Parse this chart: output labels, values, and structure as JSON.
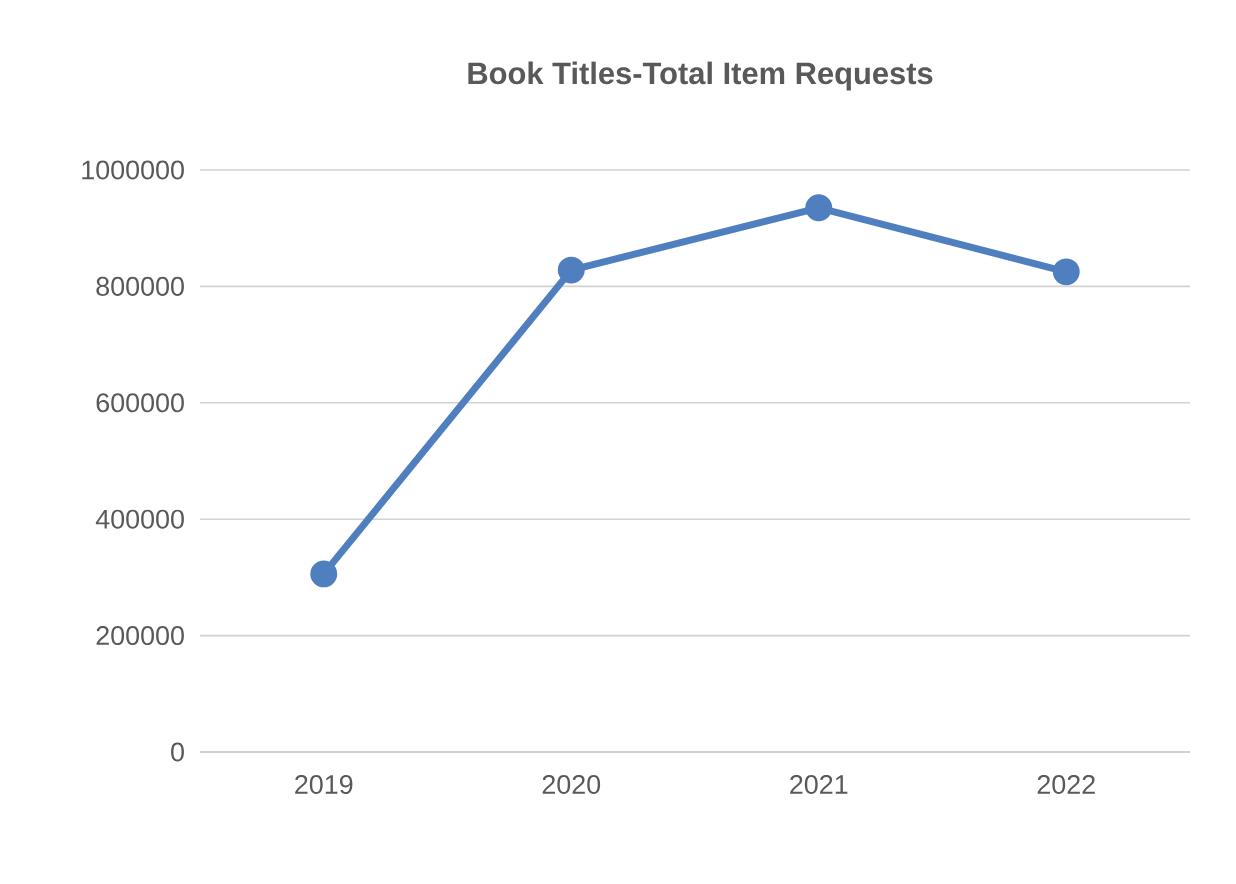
{
  "chart_data": {
    "type": "line",
    "title": "Book Titles-Total Item Requests",
    "categories": [
      "2019",
      "2020",
      "2021",
      "2022"
    ],
    "series": [
      {
        "color": "#4f7fbf",
        "values": [
          306000,
          828000,
          935000,
          825000
        ]
      }
    ],
    "ylim": [
      0,
      1000000
    ],
    "yticks": [
      0,
      200000,
      400000,
      600000,
      800000,
      1000000
    ],
    "grid": "y",
    "marker": "circle",
    "line_style": "solid"
  }
}
